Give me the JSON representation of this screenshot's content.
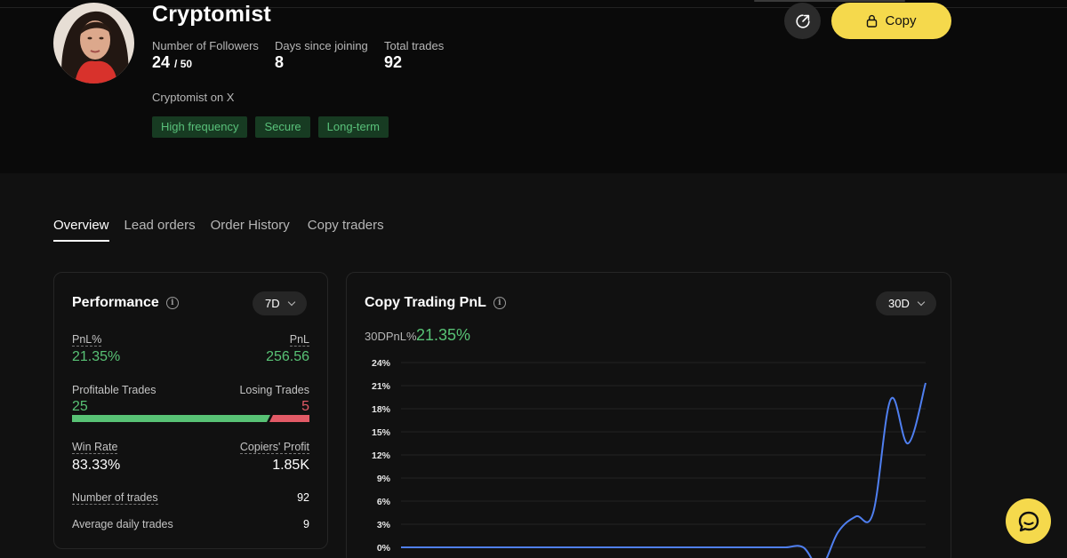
{
  "profile": {
    "name": "Cryptomist",
    "bio": "Cryptomist on X",
    "stats": [
      {
        "label": "Number of Followers",
        "value": "24",
        "suffix": "/ 50"
      },
      {
        "label": "Days since joining",
        "value": "8"
      },
      {
        "label": "Total trades",
        "value": "92"
      }
    ],
    "tags": [
      "High frequency",
      "Secure",
      "Long-term"
    ]
  },
  "actions": {
    "share_icon": "share-icon",
    "copy_label": "Copy",
    "copy_icon": "lock-icon"
  },
  "tabs": [
    "Overview",
    "Lead orders",
    "Order History",
    "Copy traders"
  ],
  "performance": {
    "title": "Performance",
    "period": "7D",
    "pnl_pct_label": "PnL%",
    "pnl_pct": "21.35%",
    "pnl_label": "PnL",
    "pnl": "256.56",
    "profitable_label": "Profitable Trades",
    "profitable": "25",
    "losing_label": "Losing Trades",
    "losing": "5",
    "win_rate_label": "Win Rate",
    "win_rate": "83.33%",
    "copiers_profit_label": "Copiers' Profit",
    "copiers_profit": "1.85K",
    "num_trades_label": "Number of trades",
    "num_trades": "92",
    "avg_daily_label": "Average daily trades",
    "avg_daily": "9"
  },
  "pnl_chart": {
    "title": "Copy Trading PnL",
    "period": "30D",
    "summary_label": "30DPnL%",
    "summary_value": "21.35%"
  },
  "colors": {
    "accent": "#f5d94c",
    "positive": "#58c275",
    "negative": "#e25a66",
    "line": "#4f7ff0"
  },
  "chart_data": {
    "type": "line",
    "title": "Copy Trading PnL",
    "xlabel": "",
    "ylabel": "",
    "ylim": [
      0,
      24
    ],
    "yticks": [
      "0%",
      "3%",
      "6%",
      "9%",
      "12%",
      "15%",
      "18%",
      "21%",
      "24%"
    ],
    "grid": true,
    "series": [
      {
        "x": [
          0,
          2,
          4,
          6,
          8,
          10,
          12,
          14,
          16,
          18,
          20,
          21,
          22,
          23,
          24,
          25,
          26,
          27,
          28,
          29,
          30
        ],
        "y": [
          0,
          0,
          0,
          0,
          0,
          0,
          0,
          0,
          0,
          0,
          0,
          0,
          0,
          0,
          -2.5,
          2.0,
          4.0,
          4.5,
          19.2,
          13.5,
          21.35
        ]
      }
    ]
  }
}
